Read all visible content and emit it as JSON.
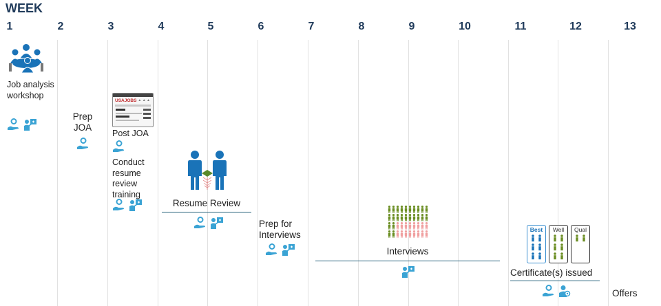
{
  "title": "WEEK",
  "weeks": [
    "1",
    "2",
    "3",
    "4",
    "5",
    "6",
    "7",
    "8",
    "9",
    "10",
    "11",
    "12",
    "13"
  ],
  "steps": {
    "job_analysis": "Job analysis workshop",
    "prep_joa": "Prep JOA",
    "post_joa": "Post JOA",
    "conduct_training": "Conduct resume review training",
    "resume_review": "Resume Review",
    "prep_interviews": "Prep for Interviews",
    "interviews": "Interviews",
    "certificates": "Certificate(s) issued",
    "offers": "Offers"
  },
  "usajobs_logo": "USAJOBS",
  "cert_categories": [
    "Best",
    "Well",
    "Qual"
  ],
  "colors": {
    "primary": "#1a73b8",
    "icon": "#3aa3d4",
    "green": "#6b8e23",
    "pink": "#f0a0a0",
    "rule": "#23607a"
  },
  "icon_names": [
    "meeting-icon",
    "person-hand-icon",
    "presenter-icon",
    "usajobs-page-icon",
    "people-review-icon",
    "crowd-icon",
    "certificate-icon",
    "person-gear-icon"
  ]
}
